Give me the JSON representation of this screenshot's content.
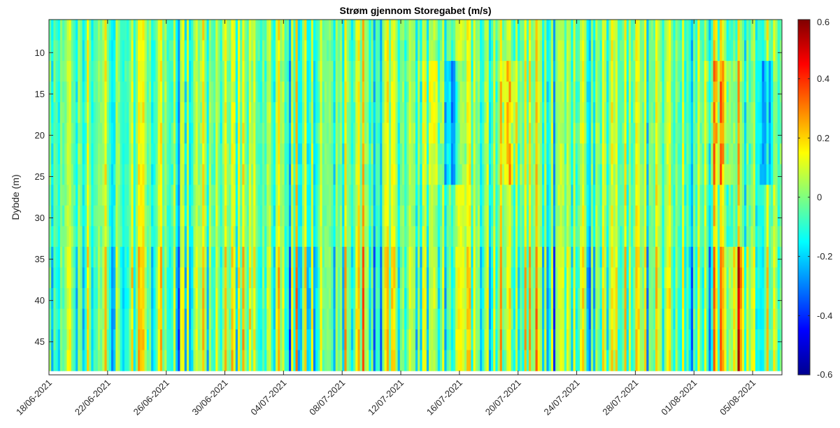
{
  "chart_data": {
    "type": "heatmap",
    "title": "Strøm gjennom Storegabet (m/s)",
    "xlabel": "",
    "ylabel": "Dybde (m)",
    "x_start": "18/06-2021",
    "x_end": "07/08-2021",
    "x_ticks": [
      "18/06-2021",
      "22/06-2021",
      "26/06-2021",
      "30/06-2021",
      "04/07-2021",
      "08/07-2021",
      "12/07-2021",
      "16/07-2021",
      "20/07-2021",
      "24/07-2021",
      "28/07-2021",
      "01/08-2021",
      "05/08-2021"
    ],
    "ylim": [
      6,
      49
    ],
    "y_reversed": true,
    "y_ticks": [
      10,
      15,
      20,
      25,
      30,
      35,
      40,
      45
    ],
    "depth_bins": [
      6,
      8.5,
      11,
      13.5,
      16,
      18.5,
      21,
      23.5,
      26,
      28.5,
      31,
      33.5,
      36,
      38.5,
      41,
      43.5,
      46,
      48.5
    ],
    "colorbar": {
      "colormap": "jet",
      "clim": [
        -0.6,
        0.6
      ],
      "ticks": [
        "0.6",
        "0.4",
        "0.2",
        "0",
        "-0.2",
        "-0.4",
        "-0.6"
      ]
    },
    "grid": false
  }
}
